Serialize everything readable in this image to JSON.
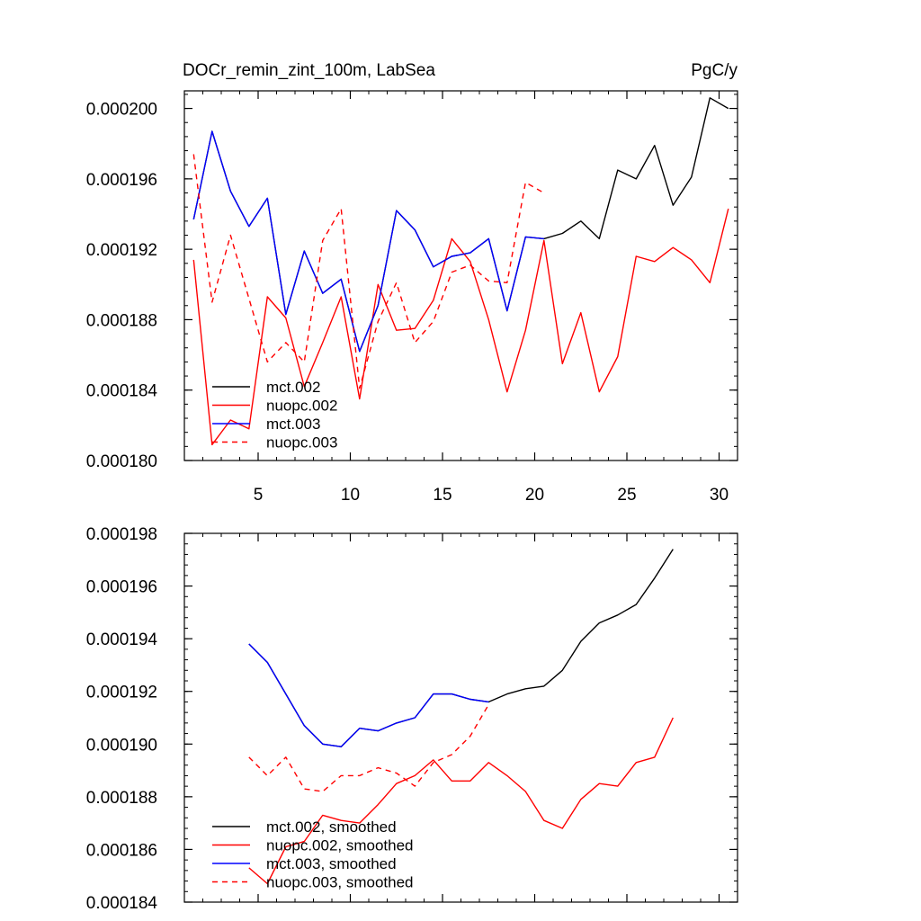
{
  "chart_data": [
    {
      "type": "line",
      "title": "DOCr_remin_zint_100m, LabSea",
      "units": "PgC/y",
      "xlim": [
        1,
        31
      ],
      "ylim": [
        0.00018,
        0.000201
      ],
      "xticks": [
        5,
        10,
        15,
        20,
        25,
        30
      ],
      "xtick_labels": [
        "5",
        "10",
        "15",
        "20",
        "25",
        "30"
      ],
      "yticks": [
        0.00018,
        0.000184,
        0.000188,
        0.000192,
        0.000196,
        0.0002
      ],
      "ytick_labels": [
        "0.000180",
        "0.000184",
        "0.000188",
        "0.000192",
        "0.000196",
        "0.000200"
      ],
      "legend_position": "bottom-left",
      "series": [
        {
          "name": "mct.002",
          "color": "#000000",
          "dash": "solid",
          "x": [
            1.5,
            2.5,
            3.5,
            4.5,
            5.5,
            6.5,
            7.5,
            8.5,
            9.5,
            10.5,
            11.5,
            12.5,
            13.5,
            14.5,
            15.5,
            16.5,
            17.5,
            18.5,
            19.5,
            20.5,
            21.5,
            22.5,
            23.5,
            24.5,
            25.5,
            26.5,
            27.5,
            28.5,
            29.5,
            30.5
          ],
          "values": [
            0.0001937,
            0.0001987,
            0.0001953,
            0.0001933,
            0.0001949,
            0.0001883,
            0.0001919,
            0.0001895,
            0.0001903,
            0.0001862,
            0.0001888,
            0.0001942,
            0.0001931,
            0.000191,
            0.0001916,
            0.0001918,
            0.0001926,
            0.0001885,
            0.0001927,
            0.0001926,
            0.0001929,
            0.0001936,
            0.0001926,
            0.0001965,
            0.000196,
            0.0001979,
            0.0001945,
            0.0001961,
            0.0002006,
            0.0002
          ]
        },
        {
          "name": "nuopc.002",
          "color": "#ff0000",
          "dash": "solid",
          "x": [
            1.5,
            2.5,
            3.5,
            4.5,
            5.5,
            6.5,
            7.5,
            8.5,
            9.5,
            10.5,
            11.5,
            12.5,
            13.5,
            14.5,
            15.5,
            16.5,
            17.5,
            18.5,
            19.5,
            20.5,
            21.5,
            22.5,
            23.5,
            24.5,
            25.5,
            26.5,
            27.5,
            28.5,
            29.5,
            30.5
          ],
          "values": [
            0.0001914,
            0.0001809,
            0.0001823,
            0.0001818,
            0.0001893,
            0.0001881,
            0.0001842,
            0.0001867,
            0.0001893,
            0.0001835,
            0.00019,
            0.0001874,
            0.0001875,
            0.0001891,
            0.0001926,
            0.0001913,
            0.000188,
            0.0001839,
            0.0001874,
            0.0001925,
            0.0001855,
            0.0001884,
            0.0001839,
            0.0001859,
            0.0001916,
            0.0001913,
            0.0001921,
            0.0001914,
            0.0001901,
            0.0001943
          ]
        },
        {
          "name": "mct.003",
          "color": "#0000ff",
          "dash": "solid",
          "x": [
            1.5,
            2.5,
            3.5,
            4.5,
            5.5,
            6.5,
            7.5,
            8.5,
            9.5,
            10.5,
            11.5,
            12.5,
            13.5,
            14.5,
            15.5,
            16.5,
            17.5,
            18.5,
            19.5,
            20.5
          ],
          "values": [
            0.0001937,
            0.0001987,
            0.0001953,
            0.0001933,
            0.0001949,
            0.0001883,
            0.0001919,
            0.0001895,
            0.0001903,
            0.0001862,
            0.0001888,
            0.0001942,
            0.0001931,
            0.000191,
            0.0001916,
            0.0001918,
            0.0001926,
            0.0001885,
            0.0001927,
            0.0001926
          ]
        },
        {
          "name": "nuopc.003",
          "color": "#ff0000",
          "dash": "dashed",
          "x": [
            1.5,
            2.5,
            3.5,
            4.5,
            5.5,
            6.5,
            7.5,
            8.5,
            9.5,
            10.5,
            11.5,
            12.5,
            13.5,
            14.5,
            15.5,
            16.5,
            17.5,
            18.5,
            19.5,
            20.5
          ],
          "values": [
            0.0001974,
            0.000189,
            0.0001928,
            0.0001892,
            0.0001856,
            0.0001867,
            0.0001856,
            0.0001925,
            0.0001943,
            0.0001841,
            0.0001879,
            0.0001901,
            0.0001867,
            0.0001879,
            0.0001907,
            0.0001911,
            0.0001902,
            0.0001901,
            0.0001958,
            0.0001952
          ]
        }
      ]
    },
    {
      "type": "line",
      "title": "",
      "xlim": [
        1,
        31
      ],
      "ylim": [
        0.000184,
        0.000198
      ],
      "xticks": [
        5,
        10,
        15,
        20,
        25,
        30
      ],
      "xtick_labels": [],
      "yticks": [
        0.000184,
        0.000186,
        0.000188,
        0.00019,
        0.000192,
        0.000194,
        0.000196,
        0.000198
      ],
      "ytick_labels": [
        "0.000184",
        "0.000186",
        "0.000188",
        "0.000190",
        "0.000192",
        "0.000194",
        "0.000196",
        "0.000198"
      ],
      "legend_position": "bottom-left",
      "series": [
        {
          "name": "mct.002, smoothed",
          "color": "#000000",
          "dash": "solid",
          "x": [
            4.5,
            5.5,
            6.5,
            7.5,
            8.5,
            9.5,
            10.5,
            11.5,
            12.5,
            13.5,
            14.5,
            15.5,
            16.5,
            17.5,
            18.5,
            19.5,
            20.5,
            21.5,
            22.5,
            23.5,
            24.5,
            25.5,
            26.5,
            27.5
          ],
          "values": [
            0.0001938,
            0.0001931,
            0.0001919,
            0.0001907,
            0.00019,
            0.0001899,
            0.0001906,
            0.0001905,
            0.0001908,
            0.000191,
            0.0001919,
            0.0001919,
            0.0001917,
            0.0001916,
            0.0001919,
            0.0001921,
            0.0001922,
            0.0001928,
            0.0001939,
            0.0001946,
            0.0001949,
            0.0001953,
            0.0001963,
            0.0001974
          ]
        },
        {
          "name": "nuopc.002, smoothed",
          "color": "#ff0000",
          "dash": "solid",
          "x": [
            4.5,
            5.5,
            6.5,
            7.5,
            8.5,
            9.5,
            10.5,
            11.5,
            12.5,
            13.5,
            14.5,
            15.5,
            16.5,
            17.5,
            18.5,
            19.5,
            20.5,
            21.5,
            22.5,
            23.5,
            24.5,
            25.5,
            26.5,
            27.5
          ],
          "values": [
            0.0001853,
            0.0001847,
            0.0001861,
            0.0001863,
            0.0001873,
            0.0001871,
            0.000187,
            0.0001877,
            0.0001885,
            0.0001888,
            0.0001894,
            0.0001886,
            0.0001886,
            0.0001893,
            0.0001888,
            0.0001882,
            0.0001871,
            0.0001868,
            0.0001879,
            0.0001885,
            0.0001884,
            0.0001893,
            0.0001895,
            0.000191
          ]
        },
        {
          "name": "mct.003, smoothed",
          "color": "#0000ff",
          "dash": "solid",
          "x": [
            4.5,
            5.5,
            6.5,
            7.5,
            8.5,
            9.5,
            10.5,
            11.5,
            12.5,
            13.5,
            14.5,
            15.5,
            16.5,
            17.5
          ],
          "values": [
            0.0001938,
            0.0001931,
            0.0001919,
            0.0001907,
            0.00019,
            0.0001899,
            0.0001906,
            0.0001905,
            0.0001908,
            0.000191,
            0.0001919,
            0.0001919,
            0.0001917,
            0.0001916
          ]
        },
        {
          "name": "nuopc.003, smoothed",
          "color": "#ff0000",
          "dash": "dashed",
          "x": [
            4.5,
            5.5,
            6.5,
            7.5,
            8.5,
            9.5,
            10.5,
            11.5,
            12.5,
            13.5,
            14.5,
            15.5,
            16.5,
            17.5
          ],
          "values": [
            0.0001895,
            0.0001888,
            0.0001895,
            0.0001883,
            0.0001882,
            0.0001888,
            0.0001888,
            0.0001891,
            0.0001889,
            0.0001884,
            0.0001893,
            0.0001896,
            0.0001903,
            0.0001915
          ]
        }
      ]
    }
  ]
}
